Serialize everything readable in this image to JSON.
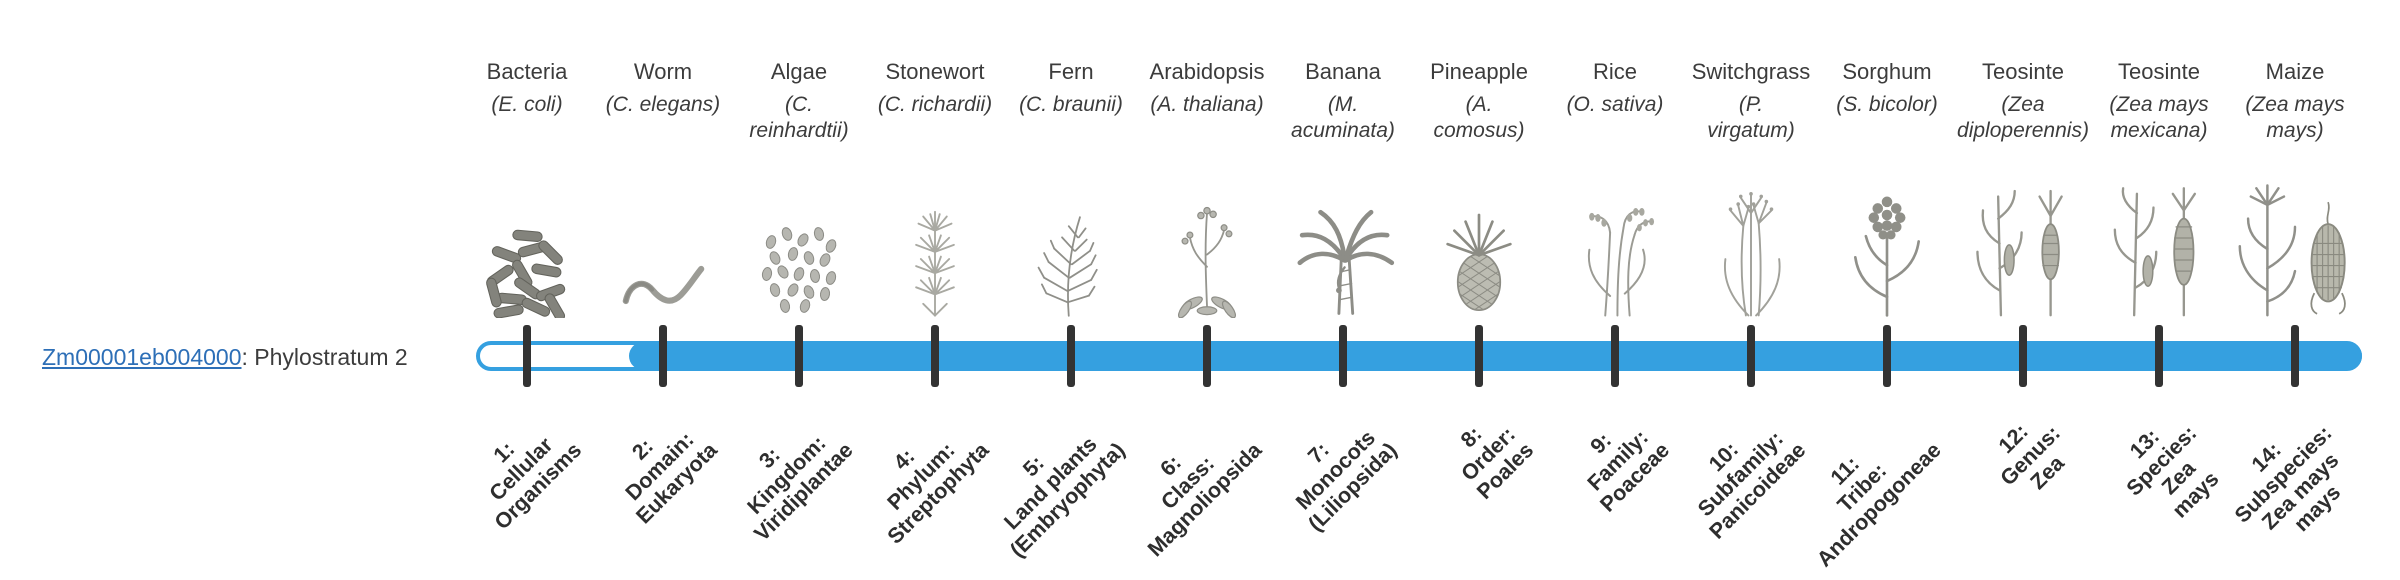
{
  "gene": {
    "id": "Zm00001eb004000",
    "suffix": ": Phylostratum 2"
  },
  "colors": {
    "timeline": "#35a0e0",
    "tick": "#333333",
    "link": "#2d6fb7",
    "text": "#3c3c3c"
  },
  "timeline": {
    "total_strata": 14,
    "filled_from_stratum": 2
  },
  "organisms": [
    {
      "name": "Bacteria",
      "sci": "(E. coli)",
      "icon": "bacteria-icon"
    },
    {
      "name": "Worm",
      "sci": "(C. elegans)",
      "icon": "worm-icon"
    },
    {
      "name": "Algae",
      "sci": "(C.\nreinhardtii)",
      "icon": "algae-icon"
    },
    {
      "name": "Stonewort",
      "sci": "(C. richardii)",
      "icon": "stonewort-icon"
    },
    {
      "name": "Fern",
      "sci": "(C. braunii)",
      "icon": "fern-icon"
    },
    {
      "name": "Arabidopsis",
      "sci": "(A. thaliana)",
      "icon": "arabidopsis-icon"
    },
    {
      "name": "Banana",
      "sci": "(M.\nacuminata)",
      "icon": "banana-icon"
    },
    {
      "name": "Pineapple",
      "sci": "(A.\ncomosus)",
      "icon": "pineapple-icon"
    },
    {
      "name": "Rice",
      "sci": "(O. sativa)",
      "icon": "rice-icon"
    },
    {
      "name": "Switchgrass",
      "sci": "(P.\nvirgatum)",
      "icon": "switchgrass-icon"
    },
    {
      "name": "Sorghum",
      "sci": "(S. bicolor)",
      "icon": "sorghum-icon"
    },
    {
      "name": "Teosinte",
      "sci": "(Zea\ndiploperennis)",
      "icon": "teosinte-diploperennis-icon"
    },
    {
      "name": "Teosinte",
      "sci": "(Zea mays\nmexicana)",
      "icon": "teosinte-mexicana-icon"
    },
    {
      "name": "Maize",
      "sci": "(Zea mays\nmays)",
      "icon": "maize-icon"
    }
  ],
  "phylostrata": [
    {
      "label": "1:\nCellular\nOrganisms"
    },
    {
      "label": "2:\nDomain:\nEukaryota"
    },
    {
      "label": "3:\nKingdom:\nViridiplantae"
    },
    {
      "label": "4:\nPhylum:\nStreptophyta"
    },
    {
      "label": "5:\nLand plants\n(Embryophyta)"
    },
    {
      "label": "6:\nClass:\nMagnoliopsida"
    },
    {
      "label": "7:\nMonocots\n(Liliopsida)"
    },
    {
      "label": "8:\nOrder:\nPoales"
    },
    {
      "label": "9:\nFamily:\nPoaceae"
    },
    {
      "label": "10:\nSubfamily:\nPanicoideae"
    },
    {
      "label": "11:\nTribe:\nAndropogoneae"
    },
    {
      "label": "12:\nGenus:\nZea"
    },
    {
      "label": "13:\nSpecies:\nZea\nmays"
    },
    {
      "label": "14:\nSubspecies:\nZea mays\nmays"
    }
  ]
}
